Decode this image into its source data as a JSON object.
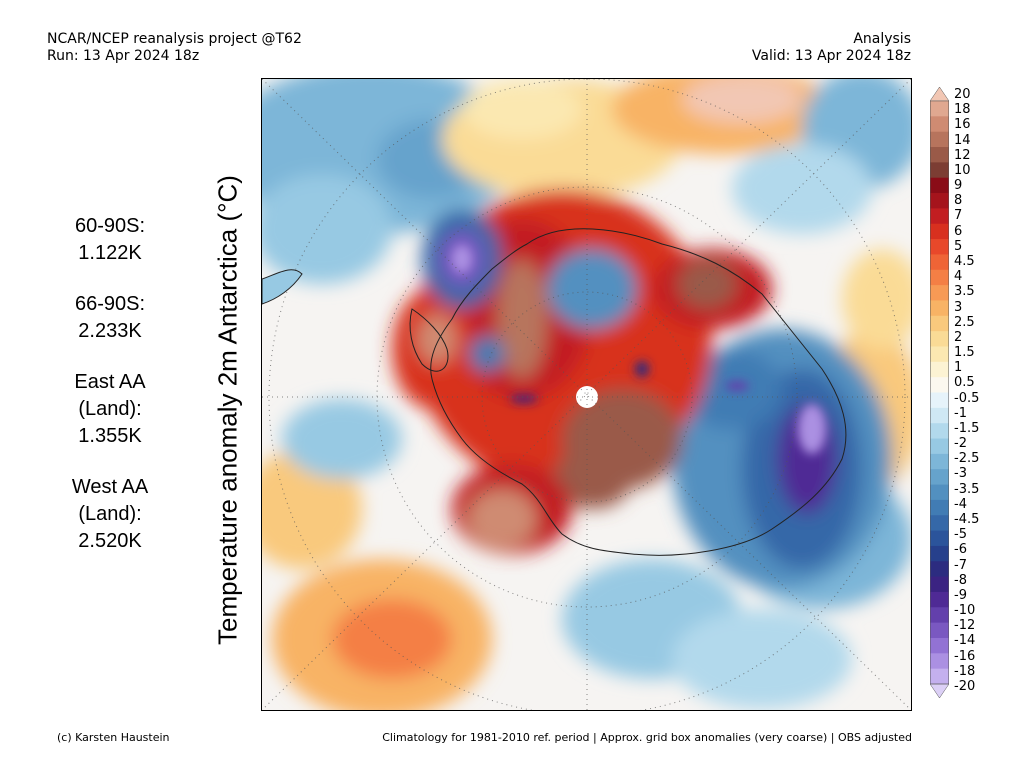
{
  "header": {
    "left_line1": "NCAR/NCEP reanalysis project @T62",
    "left_line2": "Run: 13 Apr 2024 18z",
    "right_line1": "Analysis",
    "right_line2": "Valid: 13 Apr 2024 18z"
  },
  "stats": {
    "s60_label": "60-90S:",
    "s60_value": "1.122K",
    "s66_label": "66-90S:",
    "s66_value": "2.233K",
    "east_line1": "East AA",
    "east_line2": "(Land):",
    "east_value": "1.355K",
    "west_line1": "West AA",
    "west_line2": "(Land):",
    "west_value": "2.520K"
  },
  "map_title": "Temperature anomaly 2m Antarctica (°C)",
  "colorbar": {
    "labels": [
      "20",
      "18",
      "16",
      "14",
      "12",
      "10",
      "9",
      "8",
      "7",
      "6",
      "5",
      "4.5",
      "4",
      "3.5",
      "3",
      "2.5",
      "2",
      "1.5",
      "1",
      "0.5",
      "-0.5",
      "-1",
      "-1.5",
      "-2",
      "-2.5",
      "-3",
      "-3.5",
      "-4",
      "-4.5",
      "-5",
      "-6",
      "-7",
      "-8",
      "-9",
      "-10",
      "-12",
      "-14",
      "-16",
      "-18",
      "-20"
    ],
    "colors": [
      "#f2c7b4",
      "#e0a890",
      "#cf8b72",
      "#b7745d",
      "#9a5a48",
      "#7c3d33",
      "#8a0c17",
      "#a5141c",
      "#c21e21",
      "#d8301f",
      "#e8482a",
      "#ef6436",
      "#f47f45",
      "#f79a55",
      "#f8b365",
      "#f9c97d",
      "#fadb96",
      "#fbe8b1",
      "#fcf3d3",
      "#fbf8ef",
      "#e6f3fa",
      "#cfe8f4",
      "#b2d9ec",
      "#97c9e3",
      "#7db6d8",
      "#66a3cc",
      "#5290c0",
      "#417cb4",
      "#3568a8",
      "#2b549b",
      "#26408c",
      "#2c2c80",
      "#3b2382",
      "#4f2a95",
      "#6340ac",
      "#7a58c1",
      "#9272d4",
      "#ab90e2",
      "#c4b0ee",
      "#dcd0f6"
    ]
  },
  "footer": {
    "credit": "(c) Karsten Haustein",
    "note": "Climatology for 1981-2010 ref. period | Approx. grid box anomalies (very coarse) | OBS adjusted"
  }
}
